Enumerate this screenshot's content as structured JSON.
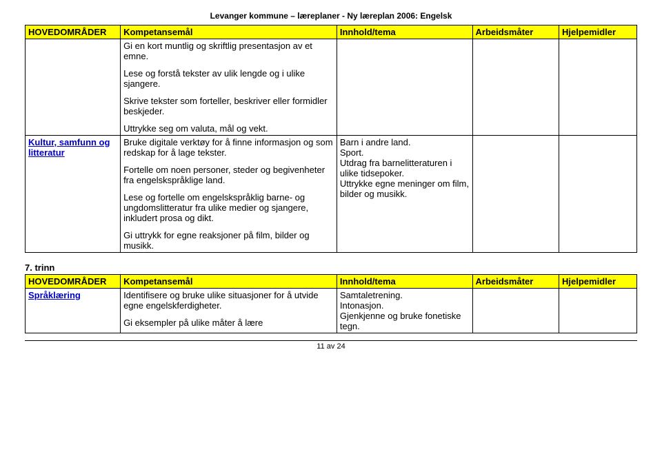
{
  "headerLine": "Levanger kommune – læreplaner - Ny læreplan 2006: Engelsk",
  "table1": {
    "headers": [
      "HOVEDOMRÅDER",
      "Kompetansemål",
      "Innhold/tema",
      "Arbeidsmåter",
      "Hjelpemidler"
    ],
    "row1": {
      "komp_para1": "Gi en kort muntlig og skriftlig presentasjon av et emne.",
      "komp_para2": "Lese og forstå tekster av ulik lengde og i ulike sjangere.",
      "komp_para3": "Skrive tekster som forteller, beskriver eller formidler beskjeder.",
      "komp_para4": "Uttrykke seg om valuta, mål og vekt."
    },
    "row2": {
      "hov": "Kultur, samfunn og litteratur",
      "komp_para1": "Bruke digitale verktøy for å finne informasjon og som redskap for å lage tekster.",
      "komp_para2": "Fortelle om noen personer, steder og begivenheter fra engelskspråklige land.",
      "komp_para3": "Lese og fortelle om engelskspråklig barne- og ungdomslitteratur fra ulike medier og sjangere, inkludert prosa og dikt.",
      "komp_para4": "Gi uttrykk for egne reaksjoner på film, bilder og musikk.",
      "inn_line1": "Barn i andre land.",
      "inn_line2": "Sport.",
      "inn_line3": "Utdrag fra barnelitteraturen i ulike tidsepoker.",
      "inn_line4": "Uttrykke egne meninger om film, bilder og musikk."
    }
  },
  "sectionLabel": "7. trinn",
  "table2": {
    "headers": [
      "HOVEDOMRÅDER",
      "Kompetansemål",
      "Innhold/tema",
      "Arbeidsmåter",
      "Hjelpemidler"
    ],
    "row1": {
      "hov": "Språklæring",
      "komp_para1": "Identifisere og bruke ulike situasjoner for å utvide egne engelskferdigheter.",
      "komp_para2": "Gi eksempler på ulike måter å lære",
      "inn_line1": "Samtaletrening.",
      "inn_line2": "Intonasjon.",
      "inn_line3": "Gjenkjenne og bruke fonetiske tegn."
    }
  },
  "pager": "11 av 24"
}
